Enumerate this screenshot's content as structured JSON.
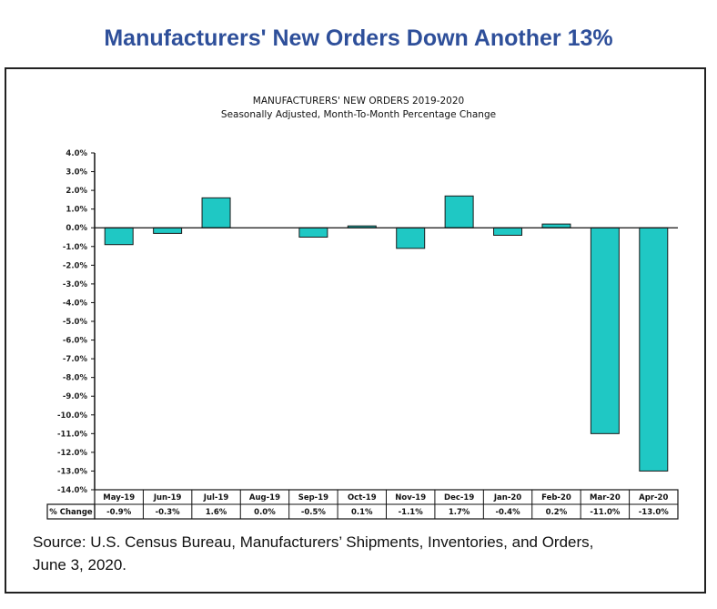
{
  "headline": "Manufacturers' New Orders Down Another 13%",
  "source_text_line1": "Source: U.S. Census Bureau, Manufacturers’ Shipments, Inventories, and Orders,",
  "source_text_line2": "June 3, 2020.",
  "colors": {
    "headline": "#2E4F9A",
    "bar_fill": "#1FC8C4",
    "bar_stroke": "#1a1a1a"
  },
  "chart_data": {
    "type": "bar",
    "title": "MANUFACTURERS'  NEW ORDERS 2019-2020",
    "subtitle": "Seasonally  Adjusted,  Month-To-Month  Percentage Change",
    "xlabel": "",
    "ylabel": "",
    "ylim": [
      -14.0,
      4.0
    ],
    "ytick_step": 1.0,
    "ytick_format": "{v}%",
    "grid": false,
    "legend": "none",
    "categories": [
      "May-19",
      "Jun-19",
      "Jul-19",
      "Aug-19",
      "Sep-19",
      "Oct-19",
      "Nov-19",
      "Dec-19",
      "Jan-20",
      "Feb-20",
      "Mar-20",
      "Apr-20"
    ],
    "values": [
      -0.9,
      -0.3,
      1.6,
      0.0,
      -0.5,
      0.1,
      -1.1,
      1.7,
      -0.4,
      0.2,
      -11.0,
      -13.0
    ],
    "table": {
      "row_label": "% Change",
      "cells": [
        "-0.9%",
        "-0.3%",
        "1.6%",
        "0.0%",
        "-0.5%",
        "0.1%",
        "-1.1%",
        "1.7%",
        "-0.4%",
        "0.2%",
        "-11.0%",
        "-13.0%"
      ]
    }
  }
}
